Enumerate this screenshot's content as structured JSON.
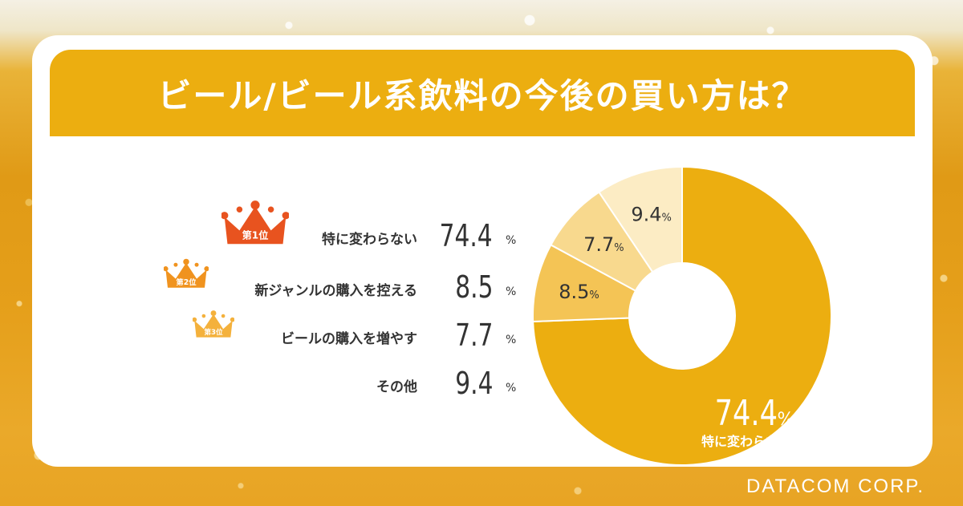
{
  "title": "ビール/ビール系飲料の今後の買い方は？",
  "footer": "DATACOM CORP.",
  "ranks": [
    "第1位",
    "第2位",
    "第3位"
  ],
  "percent_sign": "%",
  "colors": {
    "accent": "#ecae10",
    "crown1": "#e8531f",
    "crown2": "#f0931f",
    "crown3": "#f4b13c",
    "seg1": "#ecae10",
    "seg2": "#f4c455",
    "seg3": "#f8d98e",
    "seg4": "#fcecc4"
  },
  "chart_data": {
    "type": "pie",
    "title": "ビール/ビール系飲料の今後の買い方は？",
    "unit": "%",
    "categories": [
      "特に変わらない",
      "新ジャンルの購入を控える",
      "ビールの購入を増やす",
      "その他"
    ],
    "values": [
      74.4,
      8.5,
      7.7,
      9.4
    ],
    "value_labels": [
      "74.4",
      "8.5",
      "7.7",
      "9.4"
    ],
    "highlight_label": "特に変わらない"
  }
}
